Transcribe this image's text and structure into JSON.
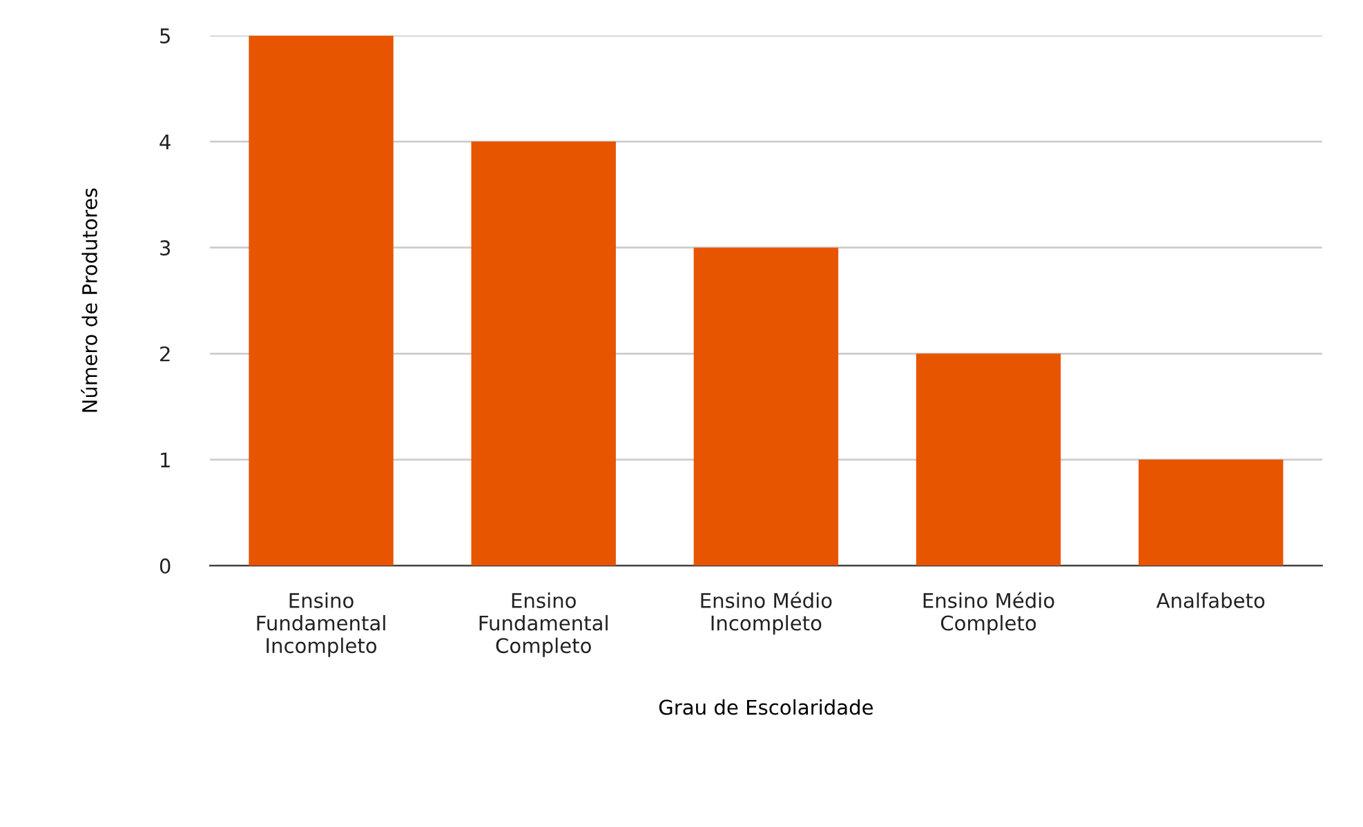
{
  "chart_data": {
    "type": "bar",
    "categories": [
      "Ensino Fundamental Incompleto",
      "Ensino Fundamental Completo",
      "Ensino Médio Incompleto",
      "Ensino Médio Completo",
      "Analfabeto"
    ],
    "values": [
      5,
      4,
      3,
      2,
      1
    ],
    "color": "#e85500",
    "xlabel": "Grau de Escolaridade",
    "ylabel": "Número de Produtores",
    "ylim": [
      0,
      5
    ],
    "yticks": [
      0,
      1,
      2,
      3,
      4,
      5
    ],
    "grid": "y",
    "legend": false
  }
}
